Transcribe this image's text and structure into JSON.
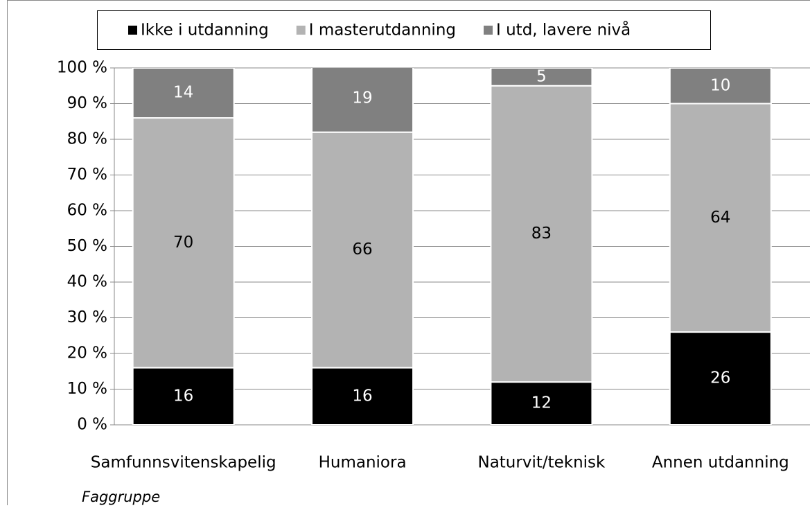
{
  "chart_data": {
    "type": "stacked-bar",
    "x_label": "Faggruppe",
    "categories": [
      "Samfunnsvitenskapelig",
      "Humaniora",
      "Naturvit/teknisk",
      "Annen utdanning"
    ],
    "series": [
      {
        "name": "Ikke i utdanning",
        "color": "#000000",
        "label_color": "#ffffff",
        "values": [
          16,
          16,
          12,
          26
        ]
      },
      {
        "name": "I masterutdanning",
        "color": "#b3b3b3",
        "label_color": "#000000",
        "values": [
          70,
          66,
          83,
          64
        ]
      },
      {
        "name": "I utd, lavere nivå",
        "color": "#808080",
        "label_color": "#ffffff",
        "values": [
          14,
          19,
          5,
          10
        ]
      }
    ],
    "ylim": [
      0,
      100
    ],
    "yticks": [
      {
        "value": 0,
        "label": "0 %"
      },
      {
        "value": 10,
        "label": "10 %"
      },
      {
        "value": 20,
        "label": "20 %"
      },
      {
        "value": 30,
        "label": "30 %"
      },
      {
        "value": 40,
        "label": "40 %"
      },
      {
        "value": 50,
        "label": "50 %"
      },
      {
        "value": 60,
        "label": "60 %"
      },
      {
        "value": 70,
        "label": "70 %"
      },
      {
        "value": 80,
        "label": "80 %"
      },
      {
        "value": 90,
        "label": "90 %"
      },
      {
        "value": 100,
        "label": "100 %"
      }
    ],
    "grid": true,
    "legend": "top"
  }
}
